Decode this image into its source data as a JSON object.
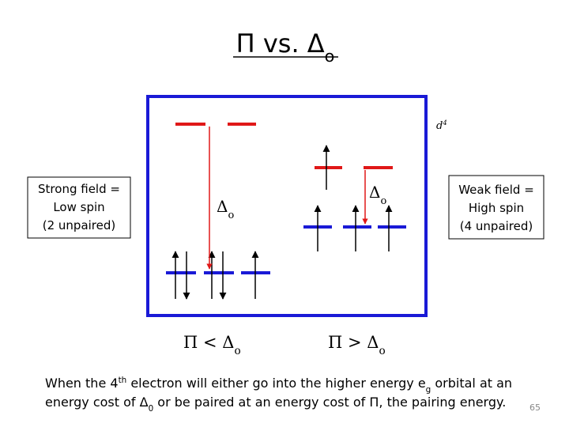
{
  "title": [
    {
      "text": "Π vs. Δ"
    },
    {
      "sub": "o"
    }
  ],
  "config_label": [
    {
      "text": "d"
    },
    {
      "sup": "4"
    }
  ],
  "strong_box": [
    "Strong field =",
    "Low spin",
    "(2 unpaired)"
  ],
  "weak_box": [
    "Weak field =",
    "High spin",
    "(4 unpaired)"
  ],
  "left_delta": [
    {
      "text": "Δ"
    },
    {
      "sub": "o"
    }
  ],
  "right_delta": [
    {
      "text": "Δ"
    },
    {
      "sub": "o"
    }
  ],
  "left_compare": [
    {
      "text": "Π < Δ"
    },
    {
      "sub": "o"
    }
  ],
  "right_compare": [
    {
      "text": "Π > Δ"
    },
    {
      "sub": "o"
    }
  ],
  "caption": [
    [
      {
        "text": "When the 4"
      },
      {
        "sup": "th"
      },
      {
        "text": " electron will either go into the higher energy e"
      },
      {
        "sub": "g"
      },
      {
        "text": " orbital at an"
      }
    ],
    [
      {
        "text": "energy cost of Δ"
      },
      {
        "sub": "0"
      },
      {
        "text": " or be paired at an energy cost of Π, the pairing energy."
      }
    ]
  ],
  "page_number": "65"
}
